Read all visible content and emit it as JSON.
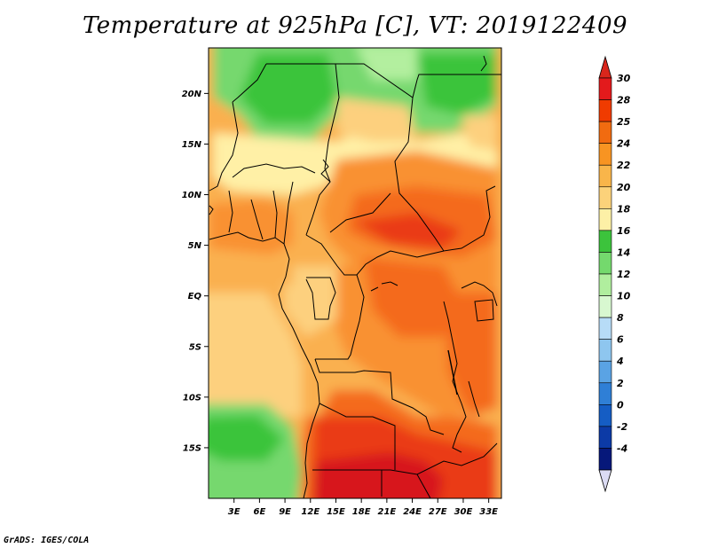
{
  "title": "Temperature at 925hPa [C], VT: 2019122409",
  "credit": "GrADS: IGES/COLA",
  "map": {
    "lon_labels": [
      "3E",
      "6E",
      "9E",
      "12E",
      "15E",
      "18E",
      "21E",
      "24E",
      "27E",
      "30E",
      "33E"
    ],
    "lat_labels": [
      "20N",
      "15N",
      "10N",
      "5N",
      "EQ",
      "5S",
      "10S",
      "15S"
    ],
    "lon_range": [
      0,
      34.5
    ],
    "lat_range": [
      -20,
      24.5
    ]
  },
  "colorbar": {
    "labels": [
      "30",
      "28",
      "25",
      "24",
      "22",
      "20",
      "18",
      "16",
      "14",
      "12",
      "10",
      "8",
      "6",
      "4",
      "2",
      "0",
      "-2",
      "-4"
    ],
    "colors": [
      "#e31a1c",
      "#f03b00",
      "#f16b10",
      "#f89422",
      "#f9b54a",
      "#fcd27a",
      "#fdf0a6",
      "#3cc33c",
      "#74d96d",
      "#b0ee9e",
      "#d8f8d0",
      "#b7dcf7",
      "#8ec6ef",
      "#5aa3e4",
      "#2f7fd6",
      "#155dc4",
      "#0c3aa6",
      "#06187a"
    ],
    "top_arrow_color": "#d9261c",
    "bottom_arrow_color": "#dcdcf4"
  },
  "field_colors": {
    "c30": "#d7191c",
    "c28": "#ea3a12",
    "c25": "#f46a1f",
    "c24": "#f99130",
    "c22": "#fab050",
    "c20": "#fdd07e",
    "c18": "#fff0a6",
    "c16": "#3bc43b",
    "c14": "#76d86e",
    "c12": "#b3ef9f"
  }
}
